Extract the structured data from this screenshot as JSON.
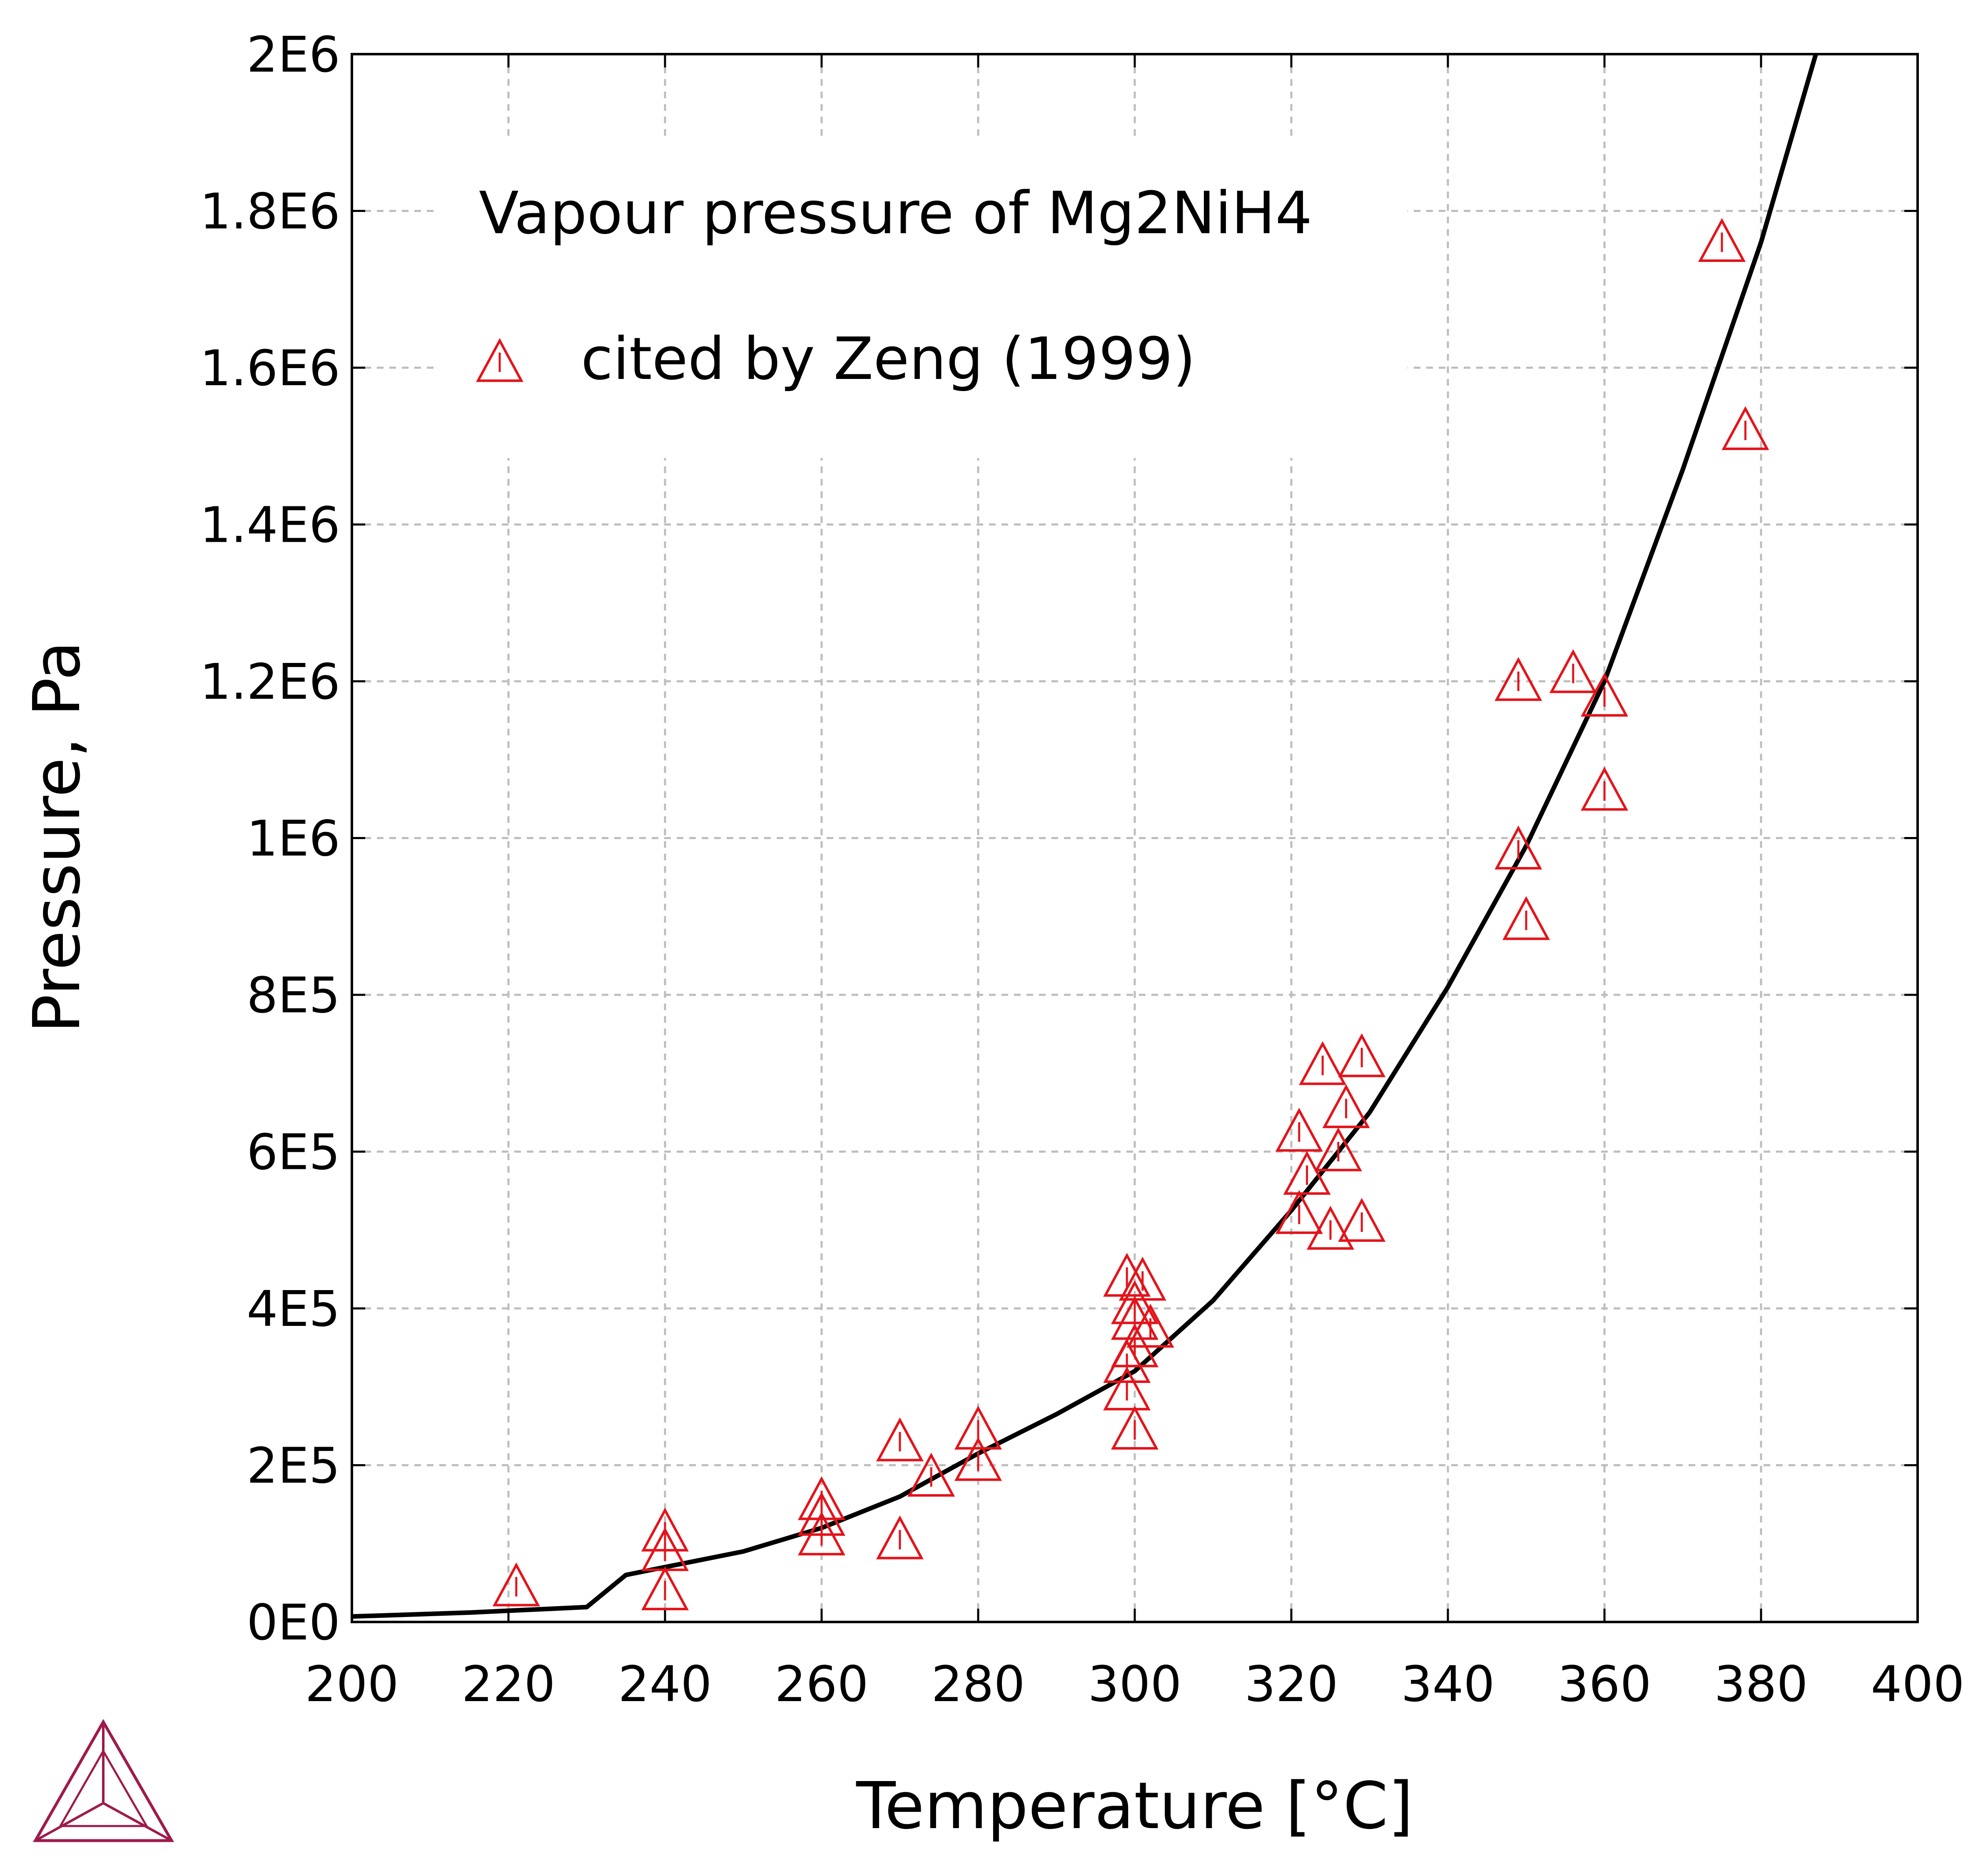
{
  "chart_data": {
    "type": "scatter",
    "title": "Vapour pressure of Mg2NiH4",
    "xlabel": "Temperature [°C]",
    "ylabel": "Pressure, Pa",
    "xlim": [
      200,
      400
    ],
    "ylim": [
      0,
      2000000
    ],
    "x_ticks": [
      200,
      220,
      240,
      260,
      280,
      300,
      320,
      340,
      360,
      380,
      400
    ],
    "x_tick_labels": [
      "200",
      "220",
      "240",
      "260",
      "280",
      "300",
      "320",
      "340",
      "360",
      "380",
      "400"
    ],
    "y_ticks": [
      0,
      200000,
      400000,
      600000,
      800000,
      1000000,
      1200000,
      1400000,
      1600000,
      1800000,
      2000000
    ],
    "y_tick_labels": [
      "0E0",
      "2E5",
      "4E5",
      "6E5",
      "8E5",
      "1E6",
      "1.2E6",
      "1.4E6",
      "1.6E6",
      "1.8E6",
      "2E6"
    ],
    "grid": true,
    "legend_position": "top-left",
    "series": [
      {
        "kind": "line",
        "color": "#000000",
        "points": [
          [
            200,
            7000
          ],
          [
            215,
            12000
          ],
          [
            230,
            19000
          ],
          [
            235,
            60000
          ],
          [
            240,
            70000
          ],
          [
            250,
            90000
          ],
          [
            260,
            120000
          ],
          [
            270,
            160000
          ],
          [
            280,
            215000
          ],
          [
            290,
            265000
          ],
          [
            300,
            320000
          ],
          [
            310,
            410000
          ],
          [
            320,
            525000
          ],
          [
            330,
            650000
          ],
          [
            340,
            810000
          ],
          [
            350,
            990000
          ],
          [
            360,
            1200000
          ],
          [
            370,
            1470000
          ],
          [
            380,
            1760000
          ],
          [
            387,
            2000000
          ]
        ]
      },
      {
        "kind": "scatter",
        "name": "cited by Zeng (1999)",
        "marker": "triangle",
        "color": "#e3141b",
        "points": [
          [
            221,
            45000
          ],
          [
            240,
            115000
          ],
          [
            240,
            90000
          ],
          [
            240,
            40000
          ],
          [
            260,
            155000
          ],
          [
            260,
            135000
          ],
          [
            260,
            110000
          ],
          [
            270,
            230000
          ],
          [
            270,
            105000
          ],
          [
            274,
            185000
          ],
          [
            280,
            245000
          ],
          [
            280,
            205000
          ],
          [
            299,
            440000
          ],
          [
            301,
            435000
          ],
          [
            300,
            405000
          ],
          [
            300,
            385000
          ],
          [
            302,
            375000
          ],
          [
            300,
            350000
          ],
          [
            299,
            330000
          ],
          [
            299,
            295000
          ],
          [
            300,
            245000
          ],
          [
            321,
            625000
          ],
          [
            322,
            570000
          ],
          [
            321,
            520000
          ],
          [
            324,
            710000
          ],
          [
            326,
            600000
          ],
          [
            325,
            500000
          ],
          [
            327,
            655000
          ],
          [
            329,
            720000
          ],
          [
            329,
            510000
          ],
          [
            349,
            1200000
          ],
          [
            349,
            985000
          ],
          [
            350,
            895000
          ],
          [
            356,
            1210000
          ],
          [
            360,
            1180000
          ],
          [
            360,
            1060000
          ],
          [
            375,
            1760000
          ],
          [
            378,
            1520000
          ]
        ]
      }
    ]
  },
  "logo": {
    "name": "thermo-calc-triangle-logo",
    "color": "#9e1b4b"
  }
}
